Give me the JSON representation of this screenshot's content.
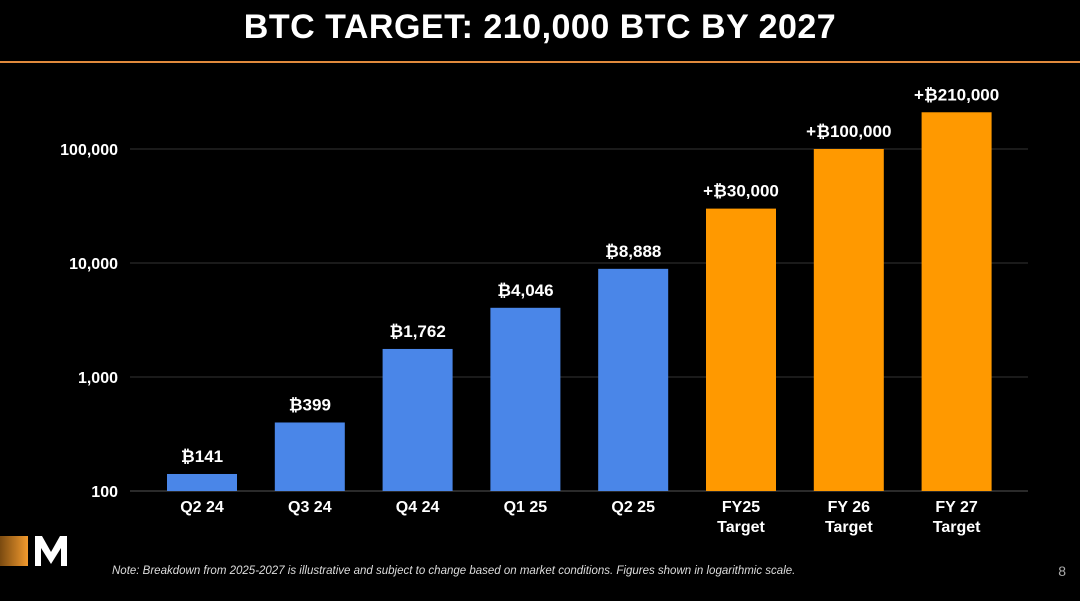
{
  "title": "BTC TARGET: 210,000 BTC BY 2027",
  "note": "Note: Breakdown from 2025-2027 is illustrative and subject to change based on market conditions. Figures shown in logarithmic scale.",
  "page_number": "8",
  "logo_letter": "M",
  "colors": {
    "actual": "#4a86e8",
    "target": "#ff9900",
    "accent": "#e08a3c"
  },
  "chart_data": {
    "type": "bar",
    "title": "BTC TARGET: 210,000 BTC BY 2027",
    "yscale": "log",
    "ylim": [
      100,
      210000
    ],
    "yticks": [
      100,
      1000,
      10000,
      100000
    ],
    "ytick_labels": [
      "100",
      "1,000",
      "10,000",
      "100,000"
    ],
    "categories": [
      [
        "Q2 24"
      ],
      [
        "Q3 24"
      ],
      [
        "Q4 24"
      ],
      [
        "Q1 25"
      ],
      [
        "Q2 25"
      ],
      [
        "FY25",
        "Target"
      ],
      [
        "FY 26",
        "Target"
      ],
      [
        "FY 27",
        "Target"
      ]
    ],
    "values": [
      141,
      399,
      1762,
      4046,
      8888,
      30000,
      100000,
      210000
    ],
    "data_labels": [
      "₿141",
      "₿399",
      "₿1,762",
      "₿4,046",
      "₿8,888",
      "+₿30,000",
      "+₿100,000",
      "+₿210,000"
    ],
    "kind": [
      "actual",
      "actual",
      "actual",
      "actual",
      "actual",
      "target",
      "target",
      "target"
    ],
    "grid": true
  }
}
